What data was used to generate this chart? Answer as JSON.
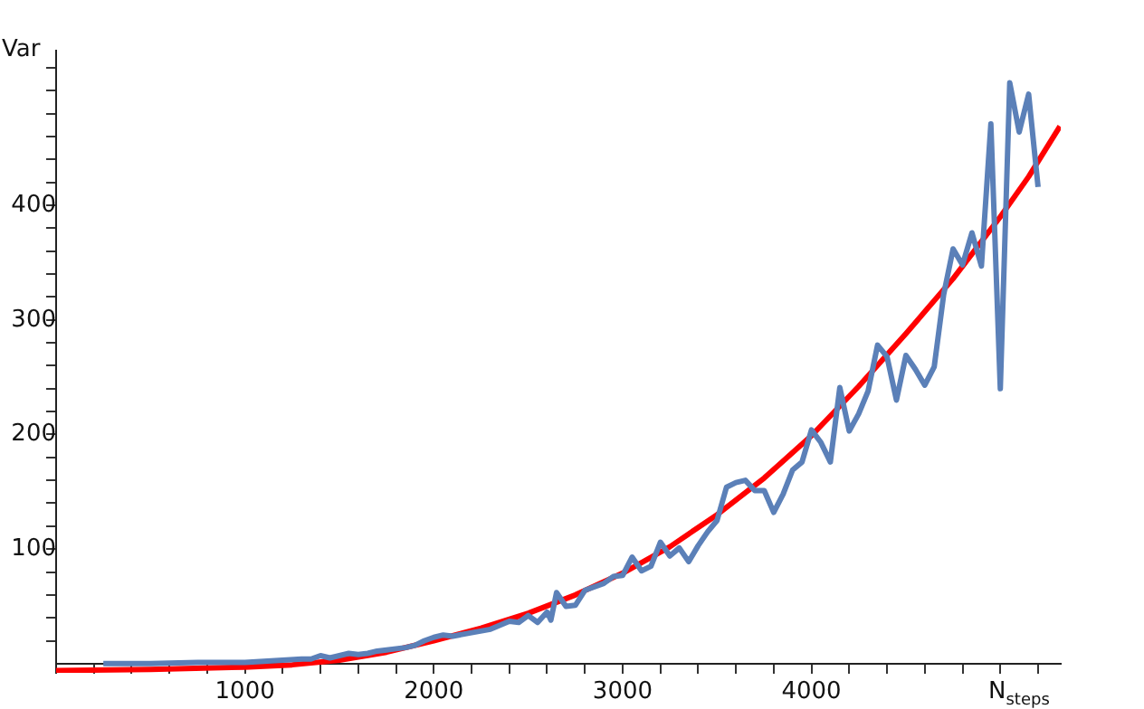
{
  "chart_data": {
    "type": "line",
    "xlabel": "N$_{steps}$",
    "ylabel": "Var",
    "xlim": [
      0,
      5320
    ],
    "ylim": [
      -8,
      535
    ],
    "xticks": [
      {
        "value": 200,
        "label": null
      },
      {
        "value": 400,
        "label": null
      },
      {
        "value": 600,
        "label": null
      },
      {
        "value": 800,
        "label": null
      },
      1000,
      {
        "value": 1200,
        "label": null
      },
      {
        "value": 1400,
        "label": null
      },
      {
        "value": 1600,
        "label": null
      },
      {
        "value": 1800,
        "label": null
      },
      2000,
      {
        "value": 2200,
        "label": null
      },
      {
        "value": 2400,
        "label": null
      },
      {
        "value": 2600,
        "label": null
      },
      {
        "value": 2800,
        "label": null
      },
      3000,
      {
        "value": 3200,
        "label": null
      },
      {
        "value": 3400,
        "label": null
      },
      {
        "value": 3600,
        "label": null
      },
      {
        "value": 3800,
        "label": null
      },
      4000,
      {
        "value": 4200,
        "label": null
      },
      {
        "value": 4400,
        "label": null
      },
      {
        "value": 4600,
        "label": null
      },
      {
        "value": 4800,
        "label": null
      },
      {
        "value": 5000,
        "label": null
      },
      {
        "value": 5200,
        "label": null
      }
    ],
    "yticks": [
      {
        "value": 20,
        "label": null
      },
      {
        "value": 40,
        "label": null
      },
      {
        "value": 60,
        "label": null
      },
      {
        "value": 80,
        "label": null
      },
      100,
      {
        "value": 120,
        "label": null
      },
      {
        "value": 140,
        "label": null
      },
      {
        "value": 160,
        "label": null
      },
      {
        "value": 180,
        "label": null
      },
      200,
      {
        "value": 220,
        "label": null
      },
      {
        "value": 240,
        "label": null
      },
      {
        "value": 260,
        "label": null
      },
      {
        "value": 280,
        "label": null
      },
      300,
      {
        "value": 320,
        "label": null
      },
      {
        "value": 340,
        "label": null
      },
      {
        "value": 360,
        "label": null
      },
      {
        "value": 380,
        "label": null
      },
      400,
      {
        "value": 420,
        "label": null
      },
      {
        "value": 440,
        "label": null
      },
      {
        "value": 460,
        "label": null
      },
      {
        "value": 480,
        "label": null
      },
      {
        "value": 500,
        "label": null
      },
      {
        "value": 520,
        "label": null
      }
    ],
    "grid": false,
    "legend": false,
    "marker": "none",
    "line_style": "solid",
    "series": [
      {
        "color": "#5b80b8",
        "x": [
          250,
          500,
          750,
          1000,
          1100,
          1200,
          1300,
          1350,
          1400,
          1450,
          1500,
          1550,
          1600,
          1650,
          1700,
          1750,
          1800,
          1850,
          1900,
          1950,
          2000,
          2050,
          2100,
          2200,
          2300,
          2400,
          2450,
          2500,
          2550,
          2600,
          2620,
          2650,
          2700,
          2750,
          2800,
          2900,
          2950,
          3000,
          3050,
          3100,
          3150,
          3200,
          3250,
          3300,
          3350,
          3400,
          3450,
          3500,
          3550,
          3600,
          3650,
          3700,
          3750,
          3800,
          3850,
          3900,
          3950,
          4000,
          4050,
          4100,
          4150,
          4200,
          4250,
          4300,
          4350,
          4400,
          4450,
          4500,
          4550,
          4600,
          4650,
          4700,
          4750,
          4800,
          4850,
          4900,
          4950,
          5000,
          5050,
          5100,
          5150,
          5200
        ],
        "values": [
          0,
          0,
          1,
          1,
          2,
          3,
          4,
          4,
          7,
          5,
          7,
          9,
          8,
          9,
          11,
          12,
          13,
          14,
          16,
          20,
          23,
          25,
          24,
          27,
          30,
          37,
          36,
          42,
          36,
          45,
          38,
          62,
          50,
          51,
          64,
          70,
          76,
          77,
          93,
          81,
          85,
          106,
          94,
          101,
          89,
          103,
          115,
          125,
          154,
          158,
          160,
          151,
          151,
          132,
          148,
          169,
          176,
          204,
          193,
          176,
          241,
          203,
          218,
          238,
          278,
          268,
          230,
          269,
          257,
          243,
          259,
          322,
          362,
          348,
          376,
          347,
          471,
          240,
          507,
          464,
          497,
          416
        ]
      },
      {
        "color": "#ff0000",
        "x": [
          0,
          500,
          1000,
          1250,
          1500,
          1750,
          2000,
          2250,
          2500,
          2750,
          3000,
          3250,
          3500,
          3750,
          4000,
          4250,
          4500,
          4750,
          5000,
          5150,
          5316
        ],
        "values": [
          -6,
          -5,
          -3,
          -1,
          3,
          10,
          20,
          31,
          44,
          60,
          79,
          102,
          130,
          162,
          199,
          242,
          288,
          336,
          390,
          425,
          469
        ]
      }
    ]
  }
}
